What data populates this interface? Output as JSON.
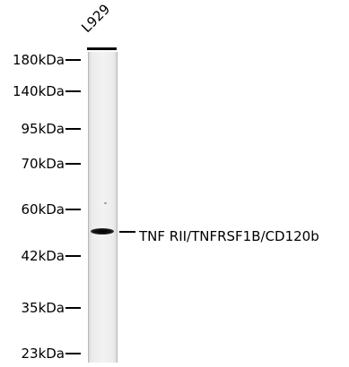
{
  "lane": {
    "label": "L929"
  },
  "markers": [
    {
      "label": "180kDa"
    },
    {
      "label": "140kDa"
    },
    {
      "label": "95kDa"
    },
    {
      "label": "70kDa"
    },
    {
      "label": "60kDa"
    },
    {
      "label": "42kDa"
    },
    {
      "label": "35kDa"
    },
    {
      "label": "23kDa"
    }
  ],
  "band": {
    "label": "TNF RII/TNFRSF1B/CD120b"
  }
}
